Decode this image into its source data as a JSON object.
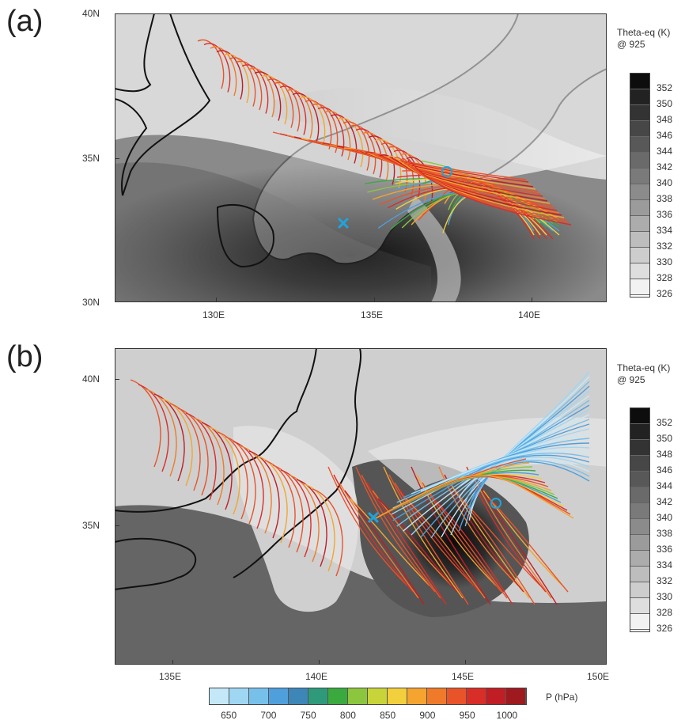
{
  "panel_a": {
    "label": "(a)",
    "lat_labels": [
      "40N",
      "35N",
      "30N"
    ],
    "lon_labels": [
      "130E",
      "135E",
      "140E"
    ],
    "colorbar": {
      "title_line1": "Theta-eq (K)",
      "title_line2": "@ 925",
      "levels": [
        "352",
        "350",
        "348",
        "346",
        "344",
        "342",
        "340",
        "338",
        "336",
        "334",
        "332",
        "330",
        "328",
        "326"
      ]
    },
    "markers": {
      "x_symbol": "✕",
      "o_symbol": "o"
    }
  },
  "panel_b": {
    "label": "(b)",
    "lat_labels": [
      "40N",
      "35N"
    ],
    "lon_labels": [
      "135E",
      "140E",
      "145E",
      "150E"
    ],
    "colorbar": {
      "title_line1": "Theta-eq (K)",
      "title_line2": "@ 925",
      "levels": [
        "352",
        "350",
        "348",
        "346",
        "344",
        "342",
        "340",
        "338",
        "336",
        "334",
        "332",
        "330",
        "328",
        "326"
      ]
    },
    "markers": {
      "x_symbol": "✕",
      "o_symbol": "o"
    }
  },
  "pressure_colorbar": {
    "title": "P (hPa)",
    "labels": [
      "650",
      "700",
      "750",
      "800",
      "850",
      "900",
      "950",
      "1000"
    ],
    "colors": [
      "#c4e8f8",
      "#9fd7f3",
      "#77c0ea",
      "#4f9fdc",
      "#3c87b8",
      "#2f9a7a",
      "#3aaa3f",
      "#8cc63f",
      "#c8d43a",
      "#f2cf3c",
      "#f5a42f",
      "#ef7a2a",
      "#e8532a",
      "#d92e27",
      "#c01e24",
      "#9e1a1e"
    ]
  },
  "grey_levels": [
    "#0d0d0d",
    "#222222",
    "#333333",
    "#474747",
    "#585858",
    "#6a6a6a",
    "#7a7a7a",
    "#8b8b8b",
    "#9b9b9b",
    "#acacac",
    "#bdbdbd",
    "#cdcdcd",
    "#dedede",
    "#f2f2f2"
  ]
}
